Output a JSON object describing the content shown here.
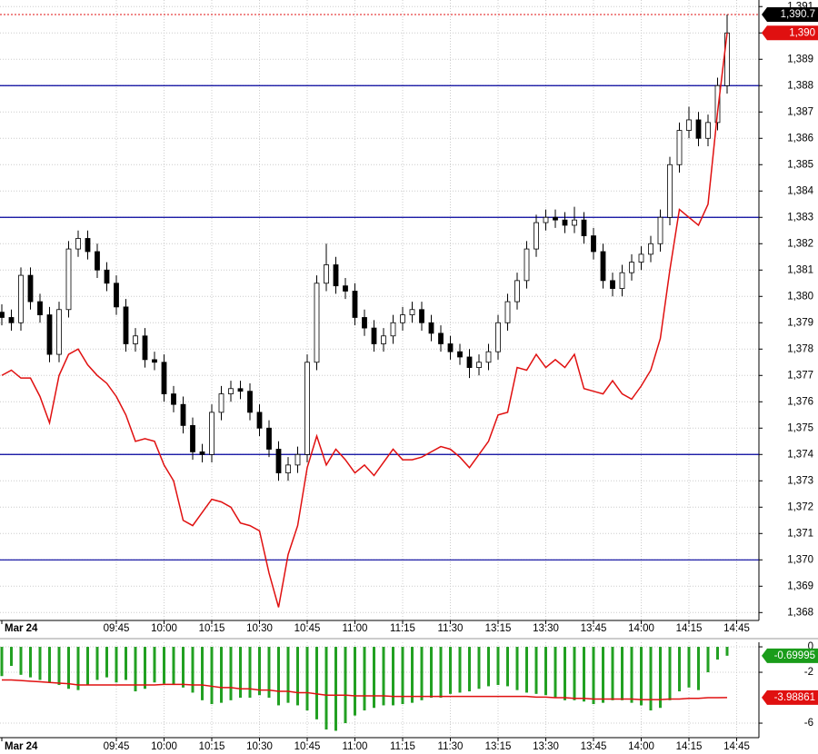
{
  "chart_data": [
    {
      "type": "candlestick",
      "categories": [
        "Mar 24",
        null,
        null,
        null,
        null,
        null,
        null,
        null,
        null,
        null,
        null,
        null,
        "09:45",
        null,
        null,
        null,
        null,
        "10:00",
        null,
        null,
        null,
        null,
        "10:15",
        null,
        null,
        null,
        null,
        "10:30",
        null,
        null,
        null,
        null,
        "10:45",
        null,
        null,
        null,
        null,
        "11:00",
        null,
        null,
        null,
        null,
        "11:15",
        null,
        null,
        null,
        null,
        "11:30",
        null,
        null,
        null,
        null,
        "13:15",
        null,
        null,
        null,
        null,
        "13:30",
        null,
        null,
        null,
        null,
        "13:45",
        null,
        null,
        null,
        null,
        "14:00",
        null,
        null,
        null,
        null,
        "14:15",
        null,
        null,
        null,
        null,
        "14:45"
      ],
      "open": [
        1379.4,
        1379.2,
        1379.0,
        1380.8,
        1379.8,
        1379.3,
        1377.8,
        1379.5,
        1381.8,
        1382.2,
        1381.7,
        1381.0,
        1380.5,
        1379.6,
        1378.2,
        1378.5,
        1377.6,
        1377.5,
        1376.3,
        1375.9,
        1375.1,
        1374.1,
        1374.0,
        1375.6,
        1376.3,
        1376.5,
        1376.4,
        1375.6,
        1375.0,
        1374.2,
        1373.3,
        1373.6,
        1374.0,
        1377.5,
        1380.5,
        1381.2,
        1380.4,
        1380.2,
        1379.2,
        1378.8,
        1378.2,
        1378.5,
        1379.0,
        1379.3,
        1379.5,
        1379.0,
        1378.6,
        1378.2,
        1377.9,
        1377.7,
        1377.3,
        1377.5,
        1377.9,
        1379.0,
        1379.8,
        1380.6,
        1381.8,
        1382.8,
        1383.0,
        1382.9,
        1382.7,
        1382.9,
        1382.3,
        1381.7,
        1380.6,
        1380.3,
        1380.9,
        1381.3,
        1381.6,
        1382.0,
        1383.0,
        1385.0,
        1386.3,
        1386.7,
        1386.0,
        1386.6,
        1388.0,
        null
      ],
      "high": [
        1379.7,
        1379.5,
        1381.1,
        1381.1,
        1380.1,
        1379.6,
        1379.8,
        1382.1,
        1382.5,
        1382.5,
        1382.0,
        1381.3,
        1380.8,
        1379.9,
        1378.8,
        1378.8,
        1377.9,
        1377.8,
        1376.6,
        1376.2,
        1375.4,
        1374.4,
        1375.9,
        1376.6,
        1376.8,
        1376.8,
        1376.7,
        1375.9,
        1375.3,
        1374.5,
        1373.9,
        1374.3,
        1377.8,
        1380.8,
        1382.0,
        1381.5,
        1380.7,
        1380.5,
        1379.5,
        1379.1,
        1378.8,
        1379.3,
        1379.6,
        1379.8,
        1379.8,
        1379.3,
        1378.9,
        1378.5,
        1378.2,
        1378.0,
        1377.8,
        1378.2,
        1379.3,
        1380.1,
        1380.9,
        1382.1,
        1383.1,
        1383.3,
        1383.3,
        1383.2,
        1383.4,
        1383.2,
        1382.6,
        1382.0,
        1380.9,
        1381.2,
        1381.6,
        1381.9,
        1382.3,
        1383.3,
        1385.3,
        1386.6,
        1387.2,
        1387.0,
        1386.9,
        1388.3,
        1390.7,
        null
      ],
      "low": [
        1378.9,
        1378.7,
        1378.7,
        1379.5,
        1379.0,
        1377.5,
        1377.5,
        1379.2,
        1381.5,
        1381.4,
        1380.7,
        1380.2,
        1379.3,
        1377.9,
        1377.9,
        1377.3,
        1377.2,
        1376.0,
        1375.6,
        1374.8,
        1373.8,
        1373.7,
        1373.7,
        1375.3,
        1376.0,
        1376.1,
        1375.3,
        1374.7,
        1373.9,
        1373.0,
        1373.0,
        1373.3,
        1373.7,
        1377.2,
        1380.2,
        1380.1,
        1379.9,
        1378.9,
        1378.5,
        1377.9,
        1377.9,
        1378.2,
        1378.7,
        1379.0,
        1378.7,
        1378.3,
        1377.9,
        1377.6,
        1377.4,
        1376.9,
        1377.0,
        1377.2,
        1377.6,
        1378.7,
        1379.5,
        1380.3,
        1381.5,
        1382.5,
        1382.6,
        1382.4,
        1382.4,
        1382.0,
        1381.4,
        1380.3,
        1380.0,
        1380.0,
        1380.6,
        1381.0,
        1381.3,
        1381.7,
        1382.7,
        1384.7,
        1386.0,
        1385.7,
        1385.7,
        1386.3,
        1387.7,
        null
      ],
      "close": [
        1379.2,
        1379.0,
        1380.8,
        1379.8,
        1379.3,
        1377.8,
        1379.5,
        1381.8,
        1382.2,
        1381.7,
        1381.0,
        1380.5,
        1379.6,
        1378.2,
        1378.5,
        1377.6,
        1377.5,
        1376.3,
        1375.9,
        1375.1,
        1374.1,
        1374.0,
        1375.6,
        1376.3,
        1376.5,
        1376.4,
        1375.6,
        1375.0,
        1374.2,
        1373.3,
        1373.6,
        1374.0,
        1377.5,
        1380.5,
        1381.2,
        1380.4,
        1380.2,
        1379.2,
        1378.8,
        1378.2,
        1378.5,
        1379.0,
        1379.3,
        1379.5,
        1379.0,
        1378.6,
        1378.2,
        1377.9,
        1377.7,
        1377.3,
        1377.5,
        1377.9,
        1379.0,
        1379.8,
        1380.6,
        1381.8,
        1382.8,
        1383.0,
        1382.9,
        1382.7,
        1382.9,
        1382.3,
        1381.7,
        1380.6,
        1380.3,
        1380.9,
        1381.3,
        1381.6,
        1382.0,
        1383.0,
        1385.0,
        1386.3,
        1386.7,
        1386.0,
        1386.6,
        1388.0,
        1390.0,
        null
      ],
      "line": {
        "color": "#e01010",
        "values": [
          1377.0,
          1377.2,
          1376.9,
          1376.9,
          1376.2,
          1375.2,
          1377.0,
          1377.8,
          1378.0,
          1377.4,
          1377.0,
          1376.7,
          1376.2,
          1375.5,
          1374.5,
          1374.6,
          1374.5,
          1373.6,
          1373.0,
          1371.5,
          1371.3,
          1371.8,
          1372.3,
          1372.2,
          1372.0,
          1371.4,
          1371.3,
          1371.1,
          1369.5,
          1368.2,
          1370.2,
          1371.3,
          1373.5,
          1374.7,
          1373.6,
          1374.2,
          1373.8,
          1373.3,
          1373.6,
          1373.2,
          1373.7,
          1374.2,
          1373.8,
          1373.8,
          1373.9,
          1374.1,
          1374.3,
          1374.2,
          1373.9,
          1373.5,
          1374.0,
          1374.5,
          1375.5,
          1375.6,
          1377.3,
          1377.2,
          1377.8,
          1377.3,
          1377.6,
          1377.3,
          1377.8,
          1376.5,
          1376.4,
          1376.3,
          1376.8,
          1376.3,
          1376.1,
          1376.6,
          1377.2,
          1378.4,
          1381.0,
          1383.3,
          1383.0,
          1382.7,
          1383.5,
          1387.0,
          1390.0,
          null
        ]
      },
      "ylim": [
        1367.7,
        1391.25
      ],
      "yticks": [
        {
          "value": 1368,
          "label": "1,368"
        },
        {
          "value": 1369,
          "label": "1,369"
        },
        {
          "value": 1370,
          "label": "1,370"
        },
        {
          "value": 1371,
          "label": "1,371"
        },
        {
          "value": 1372,
          "label": "1,372"
        },
        {
          "value": 1373,
          "label": "1,373"
        },
        {
          "value": 1374,
          "label": "1,374"
        },
        {
          "value": 1375,
          "label": "1,375"
        },
        {
          "value": 1376,
          "label": "1,376"
        },
        {
          "value": 1377,
          "label": "1,377"
        },
        {
          "value": 1378,
          "label": "1,378"
        },
        {
          "value": 1379,
          "label": "1,379"
        },
        {
          "value": 1380,
          "label": "1,380"
        },
        {
          "value": 1381,
          "label": "1,381"
        },
        {
          "value": 1382,
          "label": "1,382"
        },
        {
          "value": 1383,
          "label": "1,383"
        },
        {
          "value": 1384,
          "label": "1,384"
        },
        {
          "value": 1385,
          "label": "1,385"
        },
        {
          "value": 1386,
          "label": "1,386"
        },
        {
          "value": 1387,
          "label": "1,387"
        },
        {
          "value": 1388,
          "label": "1,388"
        },
        {
          "value": 1389,
          "label": "1,389"
        },
        {
          "value": 1390,
          "label": "1,390"
        },
        {
          "value": 1391,
          "label": "1,391"
        }
      ],
      "hlines": [
        1388,
        1383,
        1374,
        1370
      ],
      "hline_color": "#00009c",
      "tags": [
        {
          "value": 1390.7,
          "label": "1,390.7",
          "color": "#000000"
        },
        {
          "value": 1390,
          "label": "1,390",
          "color": "#e01010"
        }
      ],
      "grid": true
    },
    {
      "type": "bar",
      "categories": [
        "Mar 24",
        null,
        null,
        null,
        null,
        null,
        null,
        null,
        null,
        null,
        null,
        null,
        "09:45",
        null,
        null,
        null,
        null,
        "10:00",
        null,
        null,
        null,
        null,
        "10:15",
        null,
        null,
        null,
        null,
        "10:30",
        null,
        null,
        null,
        null,
        "10:45",
        null,
        null,
        null,
        null,
        "11:00",
        null,
        null,
        null,
        null,
        "11:15",
        null,
        null,
        null,
        null,
        "11:30",
        null,
        null,
        null,
        null,
        "13:15",
        null,
        null,
        null,
        null,
        "13:30",
        null,
        null,
        null,
        null,
        "13:45",
        null,
        null,
        null,
        null,
        "14:00",
        null,
        null,
        null,
        null,
        "14:15",
        null,
        null,
        null,
        null,
        "14:45"
      ],
      "values": [
        -2.3,
        -1.5,
        -2.2,
        -2.4,
        -2.6,
        -2.8,
        -3.0,
        -3.3,
        -3.4,
        -3.0,
        -2.6,
        -2.4,
        -2.8,
        -2.6,
        -3.5,
        -3.3,
        -2.8,
        -2.9,
        -3.0,
        -3.2,
        -3.6,
        -4.2,
        -4.5,
        -4.4,
        -4.2,
        -4.0,
        -4.0,
        -3.8,
        -4.0,
        -4.6,
        -4.4,
        -4.6,
        -5.0,
        -5.7,
        -6.5,
        -6.6,
        -6.0,
        -5.4,
        -5.0,
        -4.8,
        -4.6,
        -4.6,
        -4.5,
        -4.4,
        -4.2,
        -4.0,
        -4.0,
        -3.7,
        -3.6,
        -3.5,
        -3.3,
        -3.1,
        -3.0,
        -3.1,
        -3.4,
        -3.6,
        -3.7,
        -3.8,
        -4.0,
        -4.2,
        -4.2,
        -4.3,
        -4.5,
        -4.4,
        -4.2,
        -4.2,
        -4.4,
        -4.6,
        -5.0,
        -4.8,
        -4.2,
        -3.5,
        -3.2,
        -3.4,
        -2.0,
        -1.0,
        -0.69995,
        null
      ],
      "color": "#22a022",
      "signal": {
        "color": "#e01010",
        "values": [
          -2.6,
          -2.6,
          -2.65,
          -2.7,
          -2.75,
          -2.8,
          -2.85,
          -2.9,
          -3.0,
          -3.0,
          -3.0,
          -3.0,
          -3.0,
          -3.0,
          -3.0,
          -3.0,
          -3.0,
          -2.95,
          -2.95,
          -2.95,
          -3.0,
          -3.0,
          -3.1,
          -3.2,
          -3.2,
          -3.3,
          -3.3,
          -3.4,
          -3.4,
          -3.5,
          -3.5,
          -3.6,
          -3.6,
          -3.7,
          -3.8,
          -3.8,
          -3.8,
          -3.85,
          -3.85,
          -3.85,
          -3.85,
          -3.9,
          -3.9,
          -3.9,
          -3.9,
          -3.9,
          -3.9,
          -3.9,
          -3.9,
          -3.9,
          -3.9,
          -3.9,
          -3.9,
          -3.9,
          -3.9,
          -3.9,
          -3.95,
          -3.95,
          -4.0,
          -4.0,
          -4.05,
          -4.05,
          -4.1,
          -4.1,
          -4.1,
          -4.1,
          -4.1,
          -4.15,
          -4.15,
          -4.15,
          -4.1,
          -4.1,
          -4.05,
          -4.05,
          -4.0,
          -4.0,
          -3.98861,
          null
        ]
      },
      "ylim": [
        -7.14,
        0.36
      ],
      "yticks": [
        0,
        -2,
        -6
      ],
      "tags": [
        {
          "value": -0.69995,
          "color": "#1a9c1a"
        },
        {
          "value": -3.98861,
          "color": "#e01010"
        }
      ],
      "grid": true
    }
  ]
}
